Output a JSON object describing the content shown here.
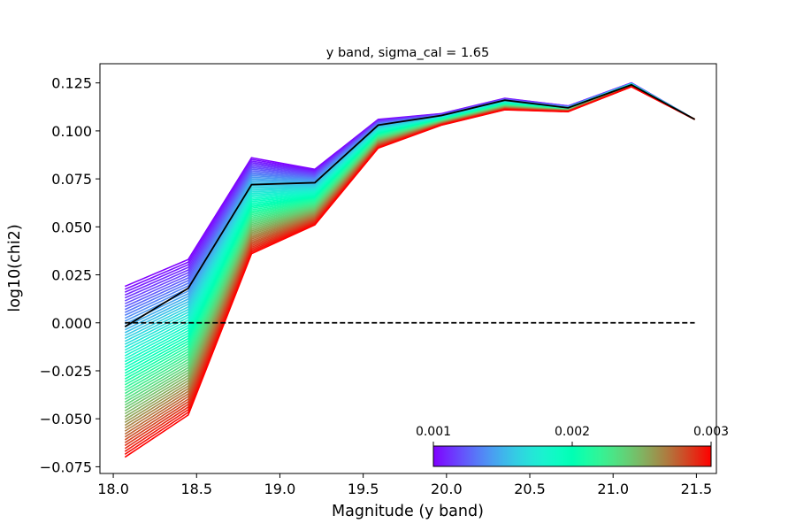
{
  "chart_data": {
    "type": "line",
    "title": "y band, sigma_cal = 1.65",
    "xlabel": "Magnitude (y band)",
    "ylabel": "log10(chi2)",
    "xlim": [
      17.92,
      21.62
    ],
    "ylim": [
      -0.0785,
      0.135
    ],
    "xticks": [
      18.0,
      18.5,
      19.0,
      19.5,
      20.0,
      20.5,
      21.0,
      21.5
    ],
    "xtick_labels": [
      "18.0",
      "18.5",
      "19.0",
      "19.5",
      "20.0",
      "20.5",
      "21.0",
      "21.5"
    ],
    "yticks": [
      -0.075,
      -0.05,
      -0.025,
      0.0,
      0.025,
      0.05,
      0.075,
      0.1,
      0.125
    ],
    "ytick_labels": [
      "−0.075",
      "−0.050",
      "−0.025",
      "0.000",
      "0.025",
      "0.050",
      "0.075",
      "0.100",
      "0.125"
    ],
    "x": [
      18.07,
      18.45,
      18.83,
      19.21,
      19.59,
      19.97,
      20.35,
      20.73,
      21.11,
      21.49
    ],
    "family": {
      "param_min": 0.001,
      "param_max": 0.003,
      "count": 60,
      "upper_values": [
        0.019,
        0.033,
        0.086,
        0.08,
        0.106,
        0.109,
        0.117,
        0.113,
        0.125,
        0.106
      ],
      "lower_values": [
        -0.07,
        -0.048,
        0.036,
        0.051,
        0.091,
        0.103,
        0.111,
        0.11,
        0.123,
        0.106
      ]
    },
    "reference_line": {
      "color": "#000000",
      "values": [
        -0.002,
        0.018,
        0.072,
        0.073,
        0.103,
        0.108,
        0.116,
        0.112,
        0.124,
        0.106
      ]
    },
    "zero_line": {
      "y": 0.0,
      "x_range": [
        18.07,
        21.49
      ],
      "style": "dashed",
      "color": "#000000"
    },
    "colorbar": {
      "colormap": "rainbow",
      "min": 0.001,
      "max": 0.003,
      "ticks": [
        0.001,
        0.002,
        0.003
      ],
      "tick_labels": [
        "0.001",
        "0.002",
        "0.003"
      ],
      "placement": "lower-right, inside axes"
    },
    "grid": false
  }
}
